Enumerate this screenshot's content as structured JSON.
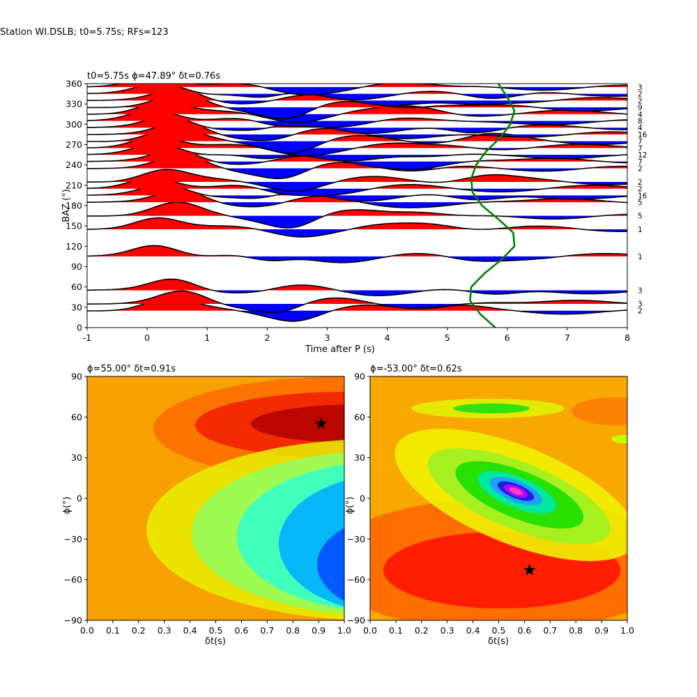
{
  "figure": {
    "suptitle": "Station WI.DSLB; t0=5.75s; RFs=123"
  },
  "chart_data": [
    {
      "type": "line",
      "title": "t0=5.75s ϕ=47.89° δt=0.76s",
      "xlabel": "Time after P (s)",
      "ylabel": "BAZ (°)",
      "xlim": [
        -1,
        8
      ],
      "ylim": [
        0,
        360
      ],
      "xticks": [
        -1,
        0,
        1,
        2,
        3,
        4,
        5,
        6,
        7,
        8
      ],
      "yticks": [
        0,
        30,
        60,
        90,
        120,
        150,
        180,
        210,
        240,
        270,
        300,
        330,
        360
      ],
      "fill_positive_color": "#ff0000",
      "fill_negative_color": "#0000ff",
      "trace_color": "#000000",
      "curve_color": "#008000",
      "bin_counts": [
        {
          "baz": 355,
          "count": "3"
        },
        {
          "baz": 345,
          "count": "2"
        },
        {
          "baz": 335,
          "count": "2"
        },
        {
          "baz": 325,
          "count": "9"
        },
        {
          "baz": 315,
          "count": "4"
        },
        {
          "baz": 305,
          "count": "8"
        },
        {
          "baz": 295,
          "count": "4"
        },
        {
          "baz": 285,
          "count": "16"
        },
        {
          "baz": 275,
          "count": "7"
        },
        {
          "baz": 265,
          "count": "7"
        },
        {
          "baz": 255,
          "count": "12"
        },
        {
          "baz": 245,
          "count": "7"
        },
        {
          "baz": 235,
          "count": "2"
        },
        {
          "baz": 215,
          "count": "2"
        },
        {
          "baz": 205,
          "count": "2"
        },
        {
          "baz": 195,
          "count": "16"
        },
        {
          "baz": 185,
          "count": "5"
        },
        {
          "baz": 165,
          "count": "5"
        },
        {
          "baz": 145,
          "count": "1"
        },
        {
          "baz": 105,
          "count": "1"
        },
        {
          "baz": 55,
          "count": "3"
        },
        {
          "baz": 35,
          "count": "3"
        },
        {
          "baz": 25,
          "count": "2"
        }
      ],
      "t0_curve": {
        "baz": [
          0,
          20,
          40,
          60,
          80,
          100,
          120,
          140,
          160,
          180,
          200,
          220,
          240,
          260,
          280,
          300,
          320,
          340,
          360
        ],
        "t": [
          5.8,
          5.55,
          5.38,
          5.4,
          5.62,
          5.9,
          6.12,
          6.1,
          5.85,
          5.58,
          5.42,
          5.4,
          5.48,
          5.65,
          5.88,
          6.05,
          6.12,
          6.0,
          5.85
        ]
      }
    },
    {
      "type": "heatmap",
      "title": "ϕ=55.00° δt=0.91s",
      "xlabel": "δt(s)",
      "ylabel": "ϕ(°)",
      "xlim": [
        0,
        1
      ],
      "ylim": [
        -90,
        90
      ],
      "xticks": [
        "0.0",
        "0.1",
        "0.2",
        "0.3",
        "0.4",
        "0.5",
        "0.6",
        "0.7",
        "0.8",
        "0.9",
        "1.0"
      ],
      "yticks": [
        -90,
        -60,
        -30,
        0,
        30,
        60,
        90
      ],
      "colormap": "jet",
      "best": {
        "dt": 0.91,
        "phi": 55
      }
    },
    {
      "type": "heatmap",
      "title": "ϕ=-53.00° δt=0.62s",
      "xlabel": "δt(s)",
      "ylabel": "ϕ(°)",
      "xlim": [
        0,
        1
      ],
      "ylim": [
        -90,
        90
      ],
      "xticks": [
        "0.0",
        "0.1",
        "0.2",
        "0.3",
        "0.4",
        "0.5",
        "0.6",
        "0.7",
        "0.8",
        "0.9",
        "1.0"
      ],
      "yticks": [
        -90,
        -60,
        -30,
        0,
        30,
        60,
        90
      ],
      "colormap": "gist_ncar",
      "best": {
        "dt": 0.62,
        "phi": -53
      }
    }
  ]
}
